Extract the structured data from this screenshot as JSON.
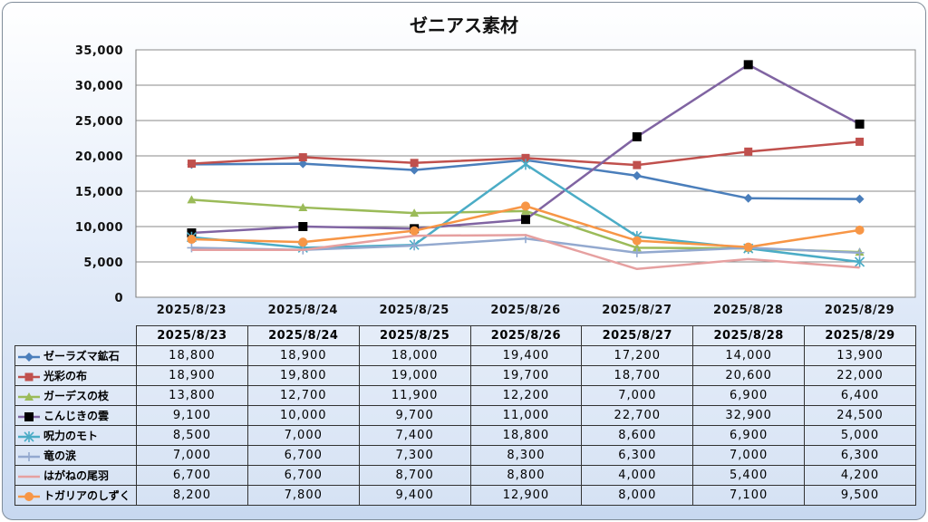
{
  "chart_data": {
    "type": "line",
    "title": "ゼニアス素材",
    "categories": [
      "2025/8/23",
      "2025/8/24",
      "2025/8/25",
      "2025/8/26",
      "2025/8/27",
      "2025/8/28",
      "2025/8/29"
    ],
    "ylim": [
      0,
      35000
    ],
    "yticks": [
      0,
      5000,
      10000,
      15000,
      20000,
      25000,
      30000,
      35000
    ],
    "ytick_labels": [
      "0",
      "5,000",
      "10,000",
      "15,000",
      "20,000",
      "25,000",
      "30,000",
      "35,000"
    ],
    "grid": true,
    "legend": "data-table-left",
    "series": [
      {
        "name": "ゼーラズマ鉱石",
        "color": "#4a7ebb",
        "marker": "diamond",
        "values": [
          18800,
          18900,
          18000,
          19400,
          17200,
          14000,
          13900
        ],
        "labels": [
          "18,800",
          "18,900",
          "18,000",
          "19,400",
          "17,200",
          "14,000",
          "13,900"
        ]
      },
      {
        "name": "光彩の布",
        "color": "#c0504d",
        "marker": "square",
        "values": [
          18900,
          19800,
          19000,
          19700,
          18700,
          20600,
          22000
        ],
        "labels": [
          "18,900",
          "19,800",
          "19,000",
          "19,700",
          "18,700",
          "20,600",
          "22,000"
        ]
      },
      {
        "name": "ガーデスの枝",
        "color": "#9bbb59",
        "marker": "triangle",
        "values": [
          13800,
          12700,
          11900,
          12200,
          7000,
          6900,
          6400
        ],
        "labels": [
          "13,800",
          "12,700",
          "11,900",
          "12,200",
          "7,000",
          "6,900",
          "6,400"
        ]
      },
      {
        "name": "こんじきの雲",
        "color": "#8064a2",
        "marker": "blacksquare",
        "values": [
          9100,
          10000,
          9700,
          11000,
          22700,
          32900,
          24500
        ],
        "labels": [
          "9,100",
          "10,000",
          "9,700",
          "11,000",
          "22,700",
          "32,900",
          "24,500"
        ]
      },
      {
        "name": "呪力のモト",
        "color": "#4bacc6",
        "marker": "asterisk",
        "values": [
          8500,
          7000,
          7400,
          18800,
          8600,
          6900,
          5000
        ],
        "labels": [
          "8,500",
          "7,000",
          "7,400",
          "18,800",
          "8,600",
          "6,900",
          "5,000"
        ]
      },
      {
        "name": "竜の涙",
        "color": "#93a9cf",
        "marker": "plus",
        "values": [
          7000,
          6700,
          7300,
          8300,
          6300,
          7000,
          6300
        ],
        "labels": [
          "7,000",
          "6,700",
          "7,300",
          "8,300",
          "6,300",
          "7,000",
          "6,300"
        ]
      },
      {
        "name": "はがねの尾羽",
        "color": "#e6a0a0",
        "marker": "none",
        "values": [
          6700,
          6700,
          8700,
          8800,
          4000,
          5400,
          4200
        ],
        "labels": [
          "6,700",
          "6,700",
          "8,700",
          "8,800",
          "4,000",
          "5,400",
          "4,200"
        ]
      },
      {
        "name": "トガリアのしずく",
        "color": "#f79646",
        "marker": "circle",
        "values": [
          8200,
          7800,
          9400,
          12900,
          8000,
          7100,
          9500
        ],
        "labels": [
          "8,200",
          "7,800",
          "9,400",
          "12,900",
          "8,000",
          "7,100",
          "9,500"
        ]
      }
    ]
  }
}
